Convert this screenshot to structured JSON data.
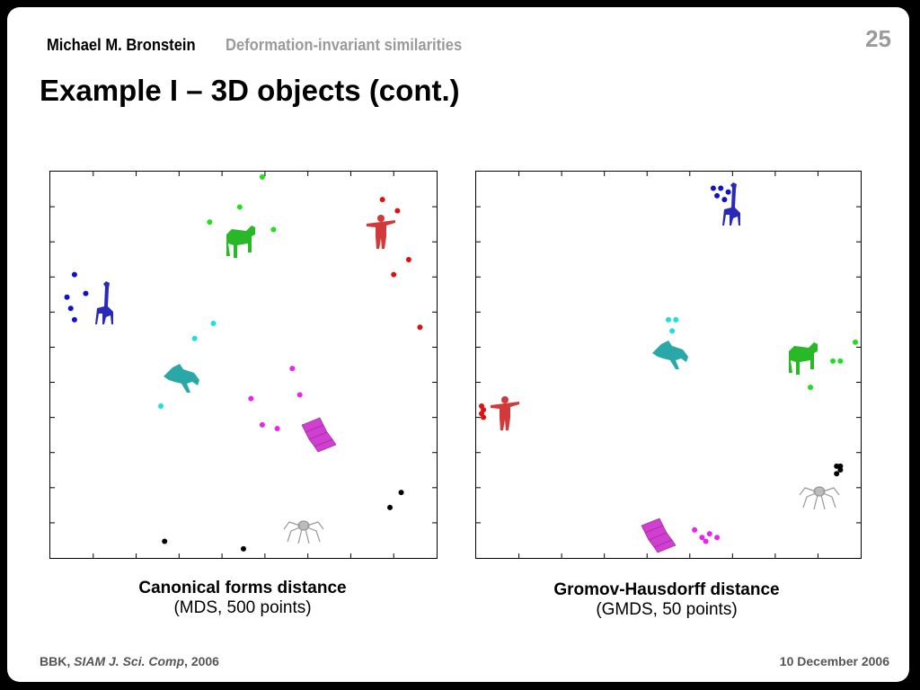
{
  "header": {
    "author": "Michael M. Bronstein",
    "topic": "Deformation-invariant similarities",
    "page_number": "25"
  },
  "title": "Example I – 3D objects (cont.)",
  "left_plot": {
    "caption_main": "Canonical forms distance",
    "caption_sub": "(MDS, 500 points)"
  },
  "right_plot": {
    "caption_main": "Gromov-Hausdorff distance",
    "caption_sub": "(GMDS, 50 points)"
  },
  "footer": {
    "citation_prefix": "BBK, ",
    "journal": "SIAM J. Sci. Comp",
    "citation_suffix": ", 2006",
    "date": "10 December 2006"
  },
  "colors": {
    "giraffe": "#1010d0",
    "horse": "#22dd22",
    "human": "#e01010",
    "cat": "#22dddd",
    "shape": "#ee22ee",
    "spider": "#000000"
  },
  "chart_data": [
    {
      "type": "scatter",
      "title": "",
      "series": [
        {
          "shape": "giraffe",
          "color": "#1010d0",
          "points": [
            [
              0.05,
              0.74
            ],
            [
              0.03,
              0.68
            ],
            [
              0.08,
              0.69
            ],
            [
              0.04,
              0.65
            ],
            [
              0.05,
              0.62
            ]
          ]
        },
        {
          "shape": "horse",
          "color": "#22dd22",
          "points": [
            [
              0.55,
              1.0
            ],
            [
              0.49,
              0.92
            ],
            [
              0.41,
              0.88
            ],
            [
              0.58,
              0.86
            ]
          ]
        },
        {
          "shape": "human",
          "color": "#e01010",
          "points": [
            [
              0.87,
              0.94
            ],
            [
              0.91,
              0.91
            ],
            [
              0.94,
              0.78
            ],
            [
              0.9,
              0.74
            ],
            [
              0.97,
              0.6
            ]
          ]
        },
        {
          "shape": "cat",
          "color": "#22dddd",
          "points": [
            [
              0.42,
              0.61
            ],
            [
              0.37,
              0.57
            ],
            [
              0.28,
              0.39
            ]
          ]
        },
        {
          "shape": "shape",
          "color": "#ee22ee",
          "points": [
            [
              0.63,
              0.49
            ],
            [
              0.65,
              0.42
            ],
            [
              0.52,
              0.41
            ],
            [
              0.55,
              0.34
            ],
            [
              0.59,
              0.33
            ]
          ]
        },
        {
          "shape": "spider",
          "color": "#000000",
          "points": [
            [
              0.92,
              0.16
            ],
            [
              0.89,
              0.12
            ],
            [
              0.29,
              0.03
            ],
            [
              0.5,
              0.01
            ]
          ]
        }
      ]
    },
    {
      "type": "scatter",
      "title": "",
      "series": [
        {
          "shape": "giraffe",
          "color": "#1010d0",
          "points": [
            [
              0.62,
              0.97
            ],
            [
              0.64,
              0.97
            ],
            [
              0.66,
              0.96
            ],
            [
              0.63,
              0.95
            ],
            [
              0.65,
              0.94
            ]
          ]
        },
        {
          "shape": "horse",
          "color": "#22dd22",
          "points": [
            [
              1.0,
              0.56
            ],
            [
              0.94,
              0.51
            ],
            [
              0.96,
              0.51
            ],
            [
              0.88,
              0.44
            ]
          ]
        },
        {
          "shape": "human",
          "color": "#e01010",
          "points": [
            [
              0.0,
              0.39
            ],
            [
              0.005,
              0.38
            ],
            [
              0.0,
              0.37
            ],
            [
              0.005,
              0.36
            ]
          ]
        },
        {
          "shape": "cat",
          "color": "#22dddd",
          "points": [
            [
              0.5,
              0.62
            ],
            [
              0.52,
              0.62
            ],
            [
              0.51,
              0.59
            ]
          ]
        },
        {
          "shape": "shape",
          "color": "#ee22ee",
          "points": [
            [
              0.57,
              0.06
            ],
            [
              0.61,
              0.05
            ],
            [
              0.59,
              0.04
            ],
            [
              0.63,
              0.04
            ],
            [
              0.6,
              0.03
            ]
          ]
        },
        {
          "shape": "spider",
          "color": "#000000",
          "points": [
            [
              0.95,
              0.23
            ],
            [
              0.96,
              0.23
            ],
            [
              0.96,
              0.22
            ],
            [
              0.95,
              0.21
            ]
          ]
        }
      ]
    }
  ]
}
